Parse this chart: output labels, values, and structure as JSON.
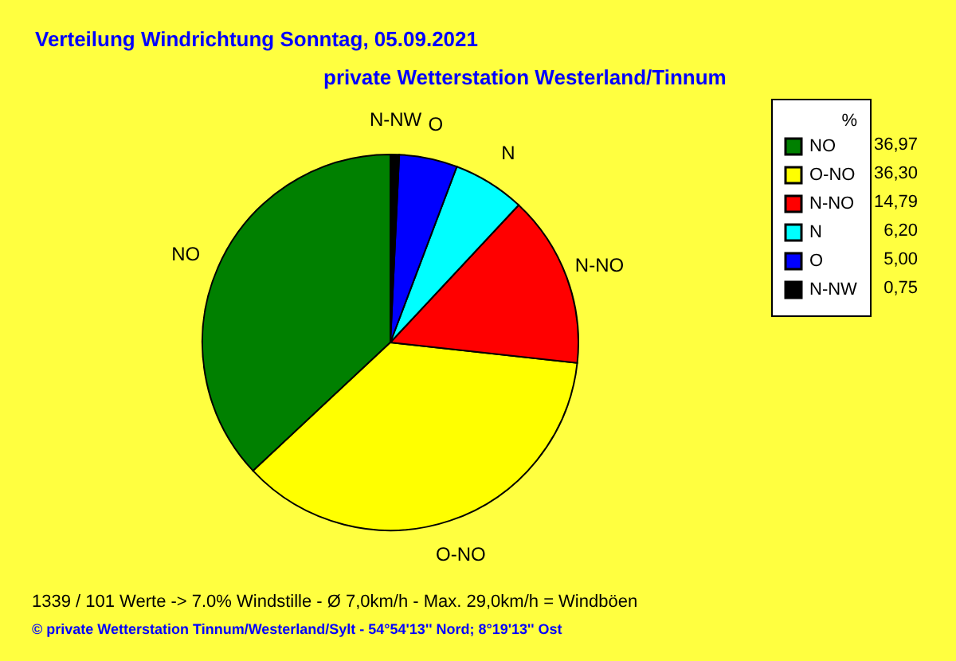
{
  "chart_data": {
    "type": "pie",
    "title": "Verteilung Windrichtung   Sonntag, 05.09.2021",
    "subtitle": "private Wetterstation Westerland/Tinnum",
    "categories": [
      "NO",
      "O-NO",
      "N-NO",
      "N",
      "O",
      "N-NW"
    ],
    "values": [
      36.97,
      36.3,
      14.79,
      6.2,
      5.0,
      0.75
    ],
    "value_labels": [
      "36,97",
      "36,30",
      "14,79",
      "6,20",
      "5,00",
      "0,75"
    ],
    "colors": [
      "#008000",
      "#ffff00",
      "#ff0000",
      "#00ffff",
      "#0000ff",
      "#000000"
    ],
    "legend_title": "%",
    "legend": "top right",
    "annotations": [
      "1339 / 101 Werte  -> 7.0% Windstille   -   Ø 7,0km/h  -  Max. 29,0km/h = Windböen",
      "© private Wetterstation Tinnum/Westerland/Sylt  -  54°54'13'' Nord; 8°19'13'' Ost"
    ]
  }
}
